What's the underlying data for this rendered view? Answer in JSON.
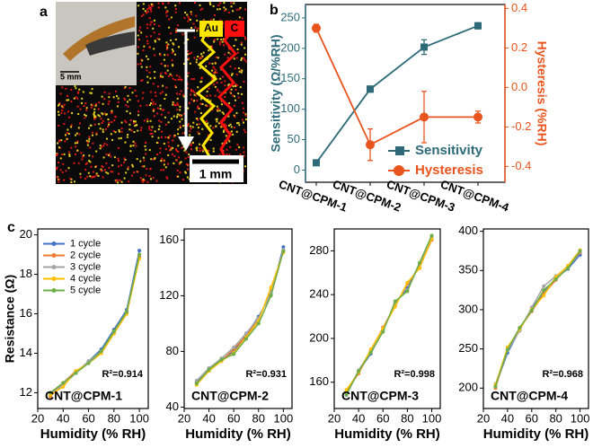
{
  "panel_labels": [
    "a",
    "b",
    "c"
  ],
  "panel_a": {
    "labels": [
      "Au",
      "C"
    ],
    "inset_scale": "5 mm",
    "scale_bar": "1 mm"
  },
  "chart_data": [
    {
      "type": "line",
      "categories": [
        "CNT@CPM-1",
        "CNT@CPM-2",
        "CNT@CPM-3",
        "CNT@CPM-4"
      ],
      "ylabel": "Sensitivity (Ω/%RH)",
      "y2label": "Hysteresis (%RH)",
      "ylim": [
        -20,
        272
      ],
      "yticks": [
        0,
        50,
        100,
        150,
        200,
        250
      ],
      "y2lim": [
        -0.48,
        0.42
      ],
      "y2ticks": [
        -0.4,
        -0.2,
        {
          "value": 0,
          "label": "0.0"
        },
        0.2,
        0.4
      ],
      "legend": "lower right",
      "series": [
        {
          "name": "Sensitivity",
          "color": "#2e6b78",
          "marker": "square",
          "values": [
            12,
            133,
            202,
            237
          ],
          "errors": [
            3,
            5,
            12,
            5
          ]
        },
        {
          "name": "Hysteresis",
          "color": "#e8541e",
          "marker": "circle",
          "axis": "y2",
          "values": [
            0.3,
            -0.29,
            -0.15,
            -0.15
          ],
          "errors": [
            0.02,
            0.08,
            0.13,
            0.03
          ]
        }
      ]
    },
    {
      "type": "line",
      "x": [
        30,
        40,
        50,
        60,
        70,
        80,
        90,
        100
      ],
      "xlim": [
        20,
        107
      ],
      "xticks": [
        20,
        40,
        60,
        80,
        100
      ],
      "ylim": [
        11.2,
        20.3
      ],
      "yticks": [
        12,
        14,
        16,
        18,
        20
      ],
      "xlabel": "Humidity (% RH)",
      "ylabel": "Resistance (Ω)",
      "annotation": "R²=0.914",
      "sample": "CNT@CPM-1",
      "legend": "upper left",
      "series": [
        {
          "name": "1 cycle",
          "color": "#4472c4",
          "values": [
            11.9,
            12.4,
            13.0,
            13.6,
            14.2,
            15.2,
            16.2,
            19.2
          ]
        },
        {
          "name": "2 cycle",
          "color": "#ed7d31",
          "values": [
            11.8,
            12.5,
            13.1,
            13.5,
            14.0,
            15.0,
            16.0,
            18.9
          ]
        },
        {
          "name": "3 cycle",
          "color": "#a5a5a5",
          "values": [
            12.0,
            12.4,
            13.0,
            13.6,
            14.1,
            15.1,
            16.1,
            19.0
          ]
        },
        {
          "name": "4 cycle",
          "color": "#ffc000",
          "values": [
            11.9,
            12.3,
            13.1,
            13.5,
            14.0,
            15.0,
            16.0,
            18.8
          ]
        },
        {
          "name": "5 cycle",
          "color": "#70ad47",
          "values": [
            12.0,
            12.5,
            13.0,
            13.5,
            14.1,
            15.1,
            16.1,
            19.0
          ]
        }
      ]
    },
    {
      "type": "line",
      "x": [
        30,
        40,
        50,
        60,
        70,
        80,
        90,
        100
      ],
      "xlim": [
        20,
        107
      ],
      "xticks": [
        20,
        40,
        60,
        80,
        100
      ],
      "ylim": [
        39,
        168
      ],
      "yticks": [
        40,
        80,
        120,
        160
      ],
      "xlabel": "Humidity (% RH)",
      "annotation": "R²=0.931",
      "sample": "CNT@CPM-2",
      "series": [
        {
          "color": "#4472c4",
          "values": [
            58,
            68,
            74,
            80,
            92,
            105,
            121,
            155
          ]
        },
        {
          "color": "#ed7d31",
          "values": [
            57,
            67,
            73,
            82,
            91,
            103,
            124,
            152
          ]
        },
        {
          "color": "#a5a5a5",
          "values": [
            59,
            68,
            75,
            83,
            93,
            104,
            122,
            153
          ]
        },
        {
          "color": "#ffc000",
          "values": [
            56,
            66,
            73,
            79,
            90,
            102,
            126,
            151
          ]
        },
        {
          "color": "#70ad47",
          "values": [
            57,
            67,
            74,
            78,
            89,
            100,
            120,
            152
          ]
        }
      ]
    },
    {
      "type": "line",
      "x": [
        30,
        40,
        50,
        60,
        70,
        80,
        90,
        100
      ],
      "xlim": [
        20,
        107
      ],
      "xticks": [
        20,
        40,
        60,
        80,
        100
      ],
      "ylim": [
        136,
        300
      ],
      "yticks": [
        160,
        200,
        240,
        280
      ],
      "xlabel": "Humidity (% RH)",
      "annotation": "R²=0.998",
      "sample": "CNT@CPM-3",
      "series": [
        {
          "color": "#4472c4",
          "values": [
            150,
            170,
            186,
            208,
            232,
            246,
            268,
            292
          ]
        },
        {
          "color": "#ed7d31",
          "values": [
            152,
            168,
            189,
            210,
            230,
            250,
            265,
            290
          ]
        },
        {
          "color": "#a5a5a5",
          "values": [
            148,
            171,
            188,
            207,
            233,
            244,
            268,
            293
          ]
        },
        {
          "color": "#ffc000",
          "values": [
            153,
            169,
            190,
            209,
            229,
            251,
            264,
            291
          ]
        },
        {
          "color": "#70ad47",
          "values": [
            149,
            170,
            187,
            206,
            234,
            243,
            269,
            294
          ]
        }
      ]
    },
    {
      "type": "line",
      "x": [
        30,
        40,
        50,
        60,
        70,
        80,
        90,
        100
      ],
      "xlim": [
        20,
        107
      ],
      "xticks": [
        20,
        40,
        60,
        80,
        100
      ],
      "ylim": [
        174,
        403
      ],
      "yticks": [
        200,
        250,
        300,
        350,
        400
      ],
      "xlabel": "Humidity (% RH)",
      "annotation": "R²=0.968",
      "sample": "CNT@CPM-4",
      "series": [
        {
          "color": "#4472c4",
          "values": [
            203,
            245,
            274,
            302,
            322,
            340,
            352,
            370
          ]
        },
        {
          "color": "#ed7d31",
          "values": [
            200,
            250,
            276,
            298,
            320,
            338,
            355,
            373
          ]
        },
        {
          "color": "#a5a5a5",
          "values": [
            205,
            248,
            273,
            303,
            330,
            343,
            354,
            374
          ]
        },
        {
          "color": "#ffc000",
          "values": [
            204,
            252,
            275,
            300,
            318,
            342,
            356,
            376
          ]
        },
        {
          "color": "#70ad47",
          "values": [
            202,
            249,
            277,
            299,
            325,
            339,
            353,
            375
          ]
        }
      ]
    }
  ]
}
